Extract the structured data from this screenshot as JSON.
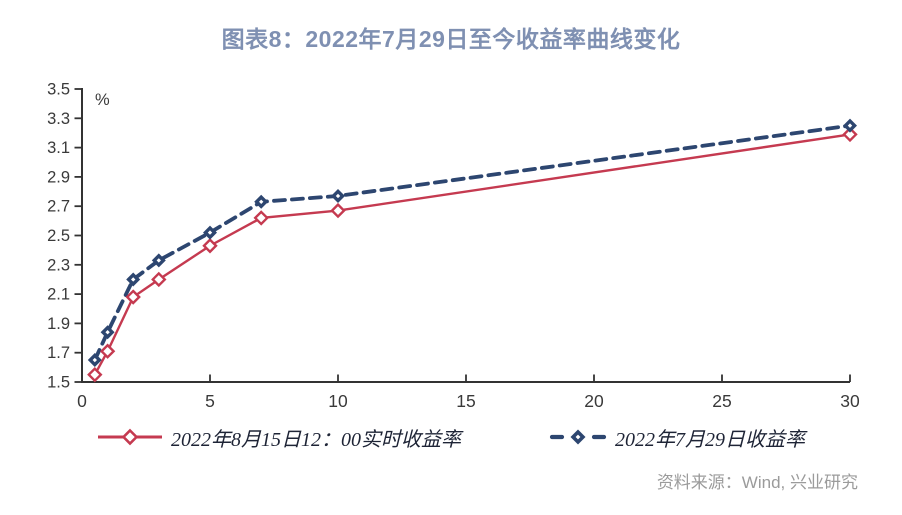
{
  "title": "图表8：2022年7月29日至今收益率曲线变化",
  "source": "资料来源：Wind, 兴业研究",
  "colors": {
    "title": "#7f90b2",
    "series1": "#c53a50",
    "series2": "#2d4670",
    "axis": "#333333",
    "tick_label": "#3a3a3a",
    "source_text": "#9b9b9b",
    "legend_text": "#1e2436"
  },
  "chart_data": {
    "type": "line",
    "title": "图表8：2022年7月29日至今收益率曲线变化",
    "xlabel": "",
    "ylabel": "%",
    "x": [
      0.5,
      1,
      2,
      3,
      5,
      7,
      10,
      30
    ],
    "series": [
      {
        "name": "2022年8月15日12：00实时收益率",
        "line_style": "solid",
        "marker": "open-diamond",
        "color": "#c53a50",
        "values": [
          1.55,
          1.71,
          2.08,
          2.2,
          2.43,
          2.62,
          2.67,
          3.19
        ]
      },
      {
        "name": "2022年7月29日收益率",
        "line_style": "dashed",
        "marker": "filled-diamond",
        "color": "#2d4670",
        "values": [
          1.65,
          1.84,
          2.2,
          2.33,
          2.52,
          2.73,
          2.77,
          3.25
        ]
      }
    ],
    "xlim": [
      0,
      30
    ],
    "ylim": [
      1.5,
      3.5
    ],
    "x_ticks": [
      0,
      5,
      10,
      15,
      20,
      25,
      30
    ],
    "y_ticks": [
      1.5,
      1.7,
      1.9,
      2.1,
      2.3,
      2.5,
      2.7,
      2.9,
      3.1,
      3.3,
      3.5
    ],
    "grid": false,
    "legend_position": "bottom"
  }
}
